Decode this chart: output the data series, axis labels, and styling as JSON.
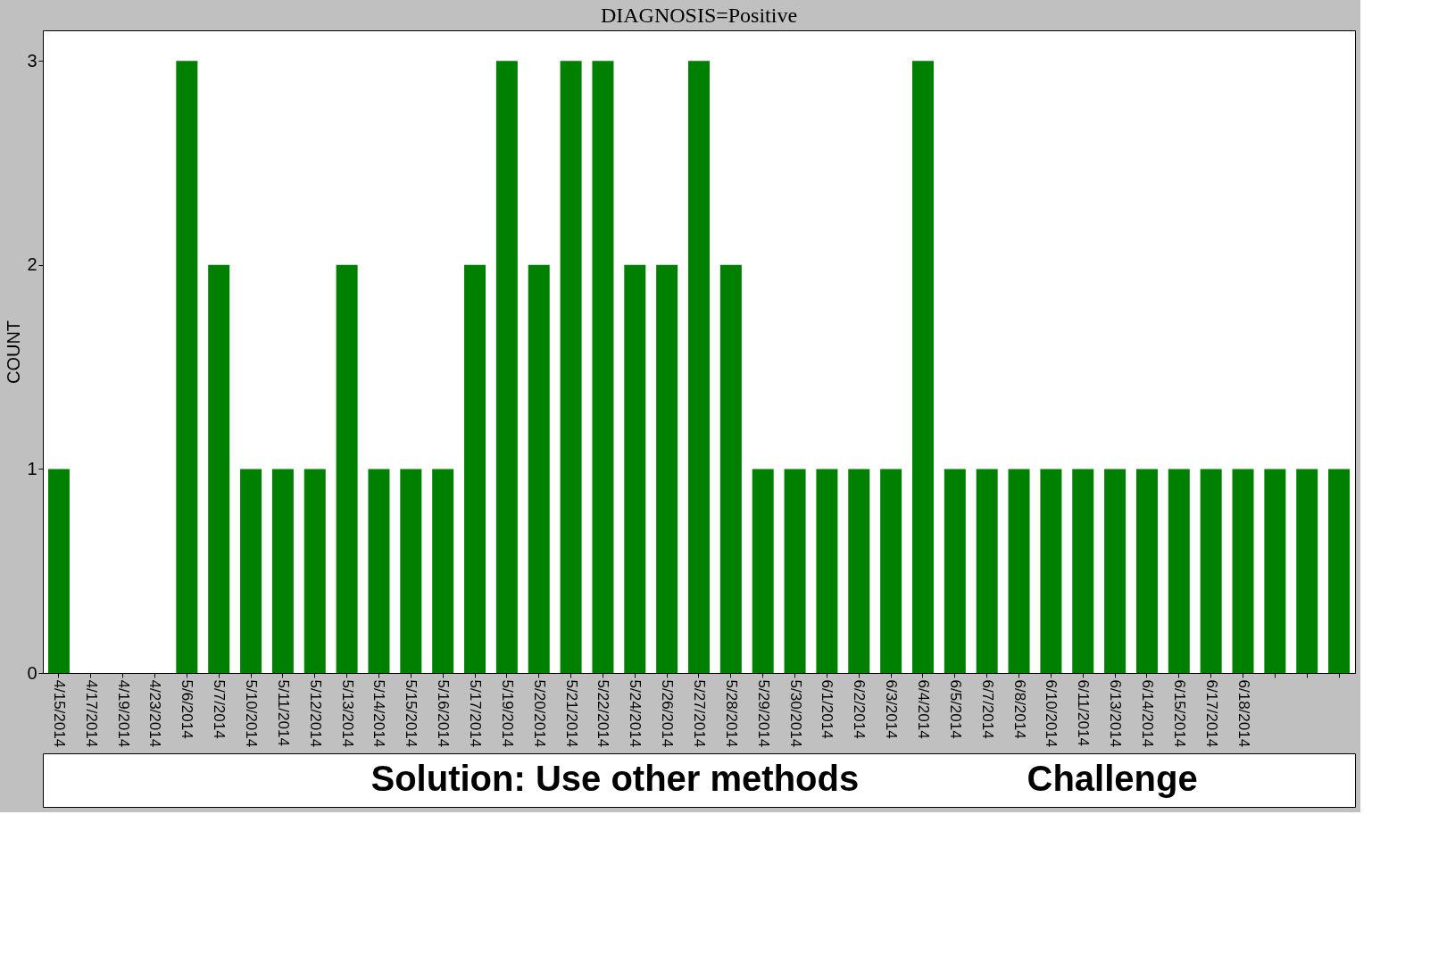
{
  "chart_data": {
    "type": "bar",
    "title": "DIAGNOSIS=Positive",
    "ylabel": "COUNT",
    "categories": [
      "4/15/2014",
      "4/17/2014",
      "4/19/2014",
      "4/23/2014",
      "5/6/2014",
      "5/7/2014",
      "5/10/2014",
      "5/11/2014",
      "5/12/2014",
      "5/13/2014",
      "5/14/2014",
      "5/15/2014",
      "5/16/2014",
      "5/17/2014",
      "5/19/2014",
      "5/20/2014",
      "5/21/2014",
      "5/22/2014",
      "5/24/2014",
      "5/26/2014",
      "5/27/2014",
      "5/28/2014",
      "5/29/2014",
      "5/30/2014",
      "6/1/2014",
      "6/2/2014",
      "6/3/2014",
      "6/4/2014",
      "6/5/2014",
      "6/7/2014",
      "6/8/2014",
      "6/10/2014",
      "6/11/2014",
      "6/13/2014",
      "6/14/2014",
      "6/15/2014",
      "6/17/2014",
      "6/18/2014",
      null,
      null,
      null
    ],
    "values": [
      1,
      0,
      0,
      0,
      3,
      2,
      1,
      1,
      1,
      2,
      1,
      1,
      1,
      2,
      3,
      2,
      3,
      3,
      2,
      2,
      3,
      2,
      1,
      1,
      1,
      1,
      1,
      3,
      1,
      1,
      1,
      1,
      1,
      1,
      1,
      1,
      1,
      1,
      1,
      1,
      1
    ],
    "color": "#008000",
    "ylim": [
      0,
      3.15
    ],
    "yticks": [
      0,
      1,
      2,
      3
    ],
    "grid": false,
    "annotations": [
      "Solution: Use other methods",
      "Challenge"
    ]
  }
}
